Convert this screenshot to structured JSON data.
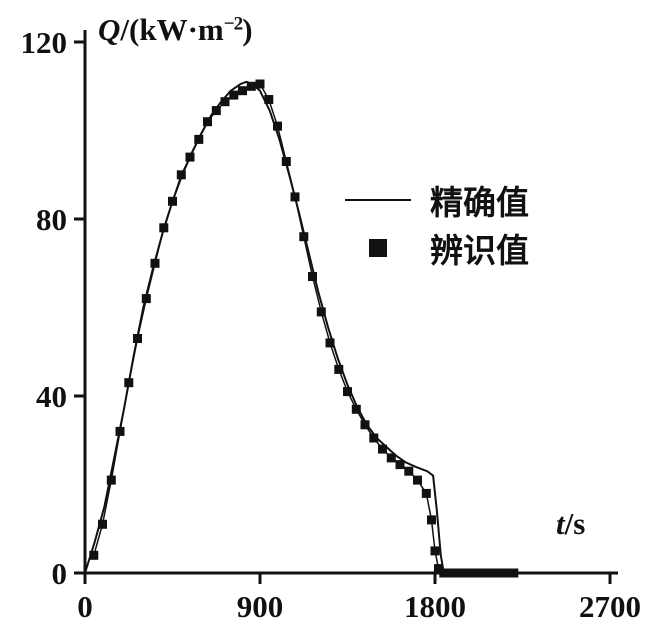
{
  "axes": {
    "y_symbol": "Q",
    "y_unit_prefix": "/(kW·m",
    "y_unit_sup": "−2",
    "y_unit_suffix": ")",
    "x_symbol": "t",
    "x_unit": "/s"
  },
  "legend": {
    "exact_label": "精确值",
    "identified_label": "辨识值"
  },
  "chart_data": {
    "type": "line",
    "title": "",
    "xlabel": "t/s",
    "ylabel": "Q/(kW·m⁻²)",
    "xlim": [
      0,
      2700
    ],
    "ylim": [
      0,
      120
    ],
    "xticks": [
      0,
      900,
      1800,
      2700
    ],
    "yticks": [
      0,
      40,
      80,
      120
    ],
    "grid": false,
    "legend_position": "center-right",
    "line_color": "#111111",
    "series": [
      {
        "name": "精确值",
        "style": "line",
        "x": [
          0,
          50,
          100,
          150,
          200,
          250,
          300,
          350,
          400,
          450,
          500,
          550,
          600,
          650,
          700,
          750,
          800,
          830,
          860,
          900,
          950,
          1000,
          1050,
          1100,
          1150,
          1200,
          1250,
          1300,
          1350,
          1400,
          1450,
          1500,
          1550,
          1600,
          1650,
          1700,
          1760,
          1790,
          1810,
          1830,
          1845,
          1900,
          2000,
          2100,
          2200,
          2230
        ],
        "y": [
          0,
          7,
          15,
          26,
          37,
          49,
          60,
          69,
          77,
          84,
          90,
          95,
          99.5,
          103.5,
          106.5,
          109,
          110.5,
          111,
          110.5,
          109,
          104.5,
          98,
          90,
          81.5,
          72.5,
          63.5,
          55.5,
          48.5,
          42.5,
          37.5,
          33.5,
          30.5,
          28.5,
          26.5,
          25,
          24,
          23,
          22,
          14,
          4,
          0,
          0,
          0,
          0,
          0,
          0
        ]
      },
      {
        "name": "辨识值",
        "style": "square-markers",
        "x": [
          45,
          90,
          135,
          180,
          225,
          270,
          315,
          360,
          405,
          450,
          495,
          540,
          585,
          630,
          675,
          720,
          765,
          810,
          855,
          900,
          945,
          990,
          1035,
          1080,
          1125,
          1170,
          1215,
          1260,
          1305,
          1350,
          1395,
          1440,
          1485,
          1530,
          1575,
          1620,
          1665,
          1710,
          1755,
          1782,
          1800,
          1818,
          1845,
          1885,
          1925,
          1965,
          2005,
          2045,
          2085,
          2125,
          2165,
          2205
        ],
        "y": [
          4,
          11,
          21,
          32,
          43,
          53,
          62,
          70,
          78,
          84,
          90,
          94,
          98,
          102,
          104.5,
          106.5,
          108,
          109,
          110,
          110.5,
          107,
          101,
          93,
          85,
          76,
          67,
          59,
          52,
          46,
          41,
          37,
          33.5,
          30.5,
          28,
          26,
          24.5,
          23,
          21,
          18,
          12,
          5,
          1,
          0,
          0,
          0,
          0,
          0,
          0,
          0,
          0,
          0,
          0
        ]
      }
    ]
  }
}
